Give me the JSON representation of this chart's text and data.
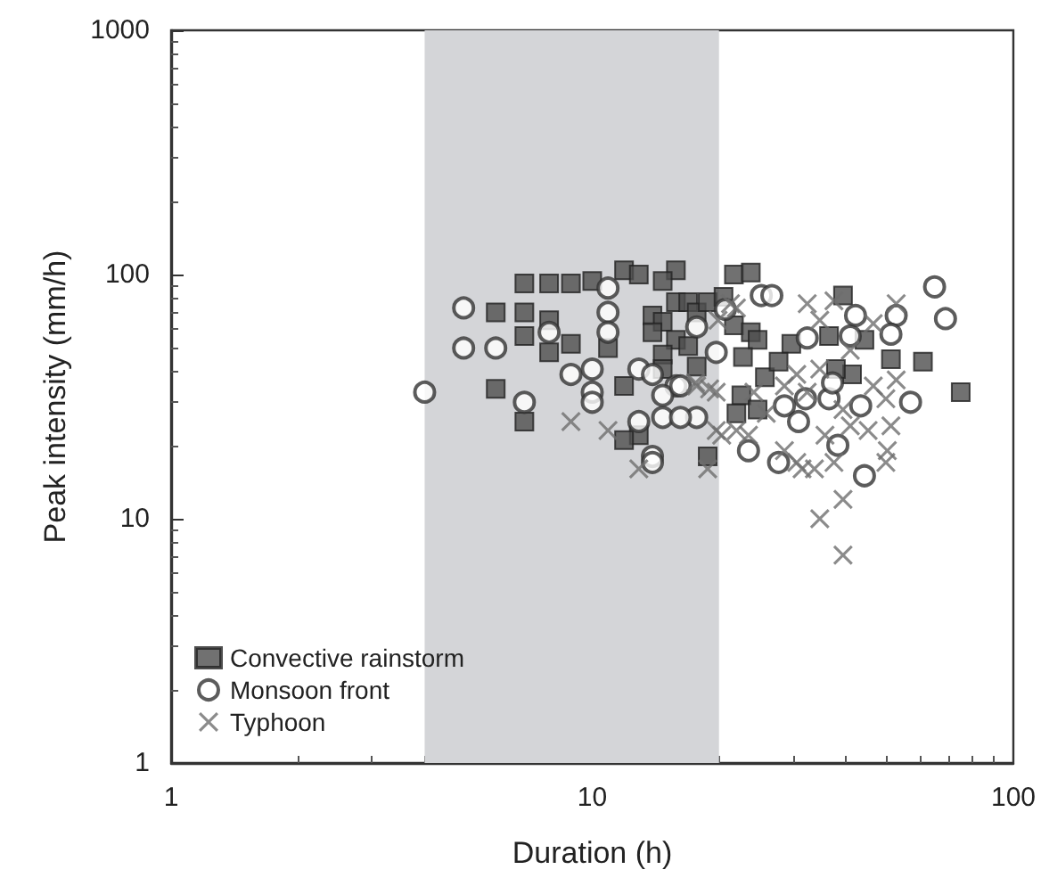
{
  "chart_data": {
    "type": "scatter",
    "xlabel": "Duration (h)",
    "ylabel": "Peak intensity (mm/h)",
    "log": "xy",
    "xlim": [
      1,
      100
    ],
    "ylim": [
      1,
      1000
    ],
    "xticks": [
      1,
      10,
      100
    ],
    "yticks": [
      1,
      10,
      100,
      1000
    ],
    "grid": false,
    "legend": "bottom left",
    "bands": [
      {
        "axis": "x",
        "from": 4,
        "to": 20,
        "color": "#d4d5d8"
      }
    ],
    "series": [
      {
        "name": "Convective rainstorm",
        "color": "#4d4d4d",
        "marker": "square",
        "x": [
          6.9,
          7.9,
          8.9,
          10,
          11.9,
          12.9,
          15.8,
          14.7,
          5.9,
          6.9,
          7.9,
          6.9,
          7.9,
          8.9,
          10.9,
          13.9,
          14.7,
          15.8,
          16.9,
          17.7,
          18.8,
          20.5,
          13.9,
          15.8,
          16.9,
          14.7,
          14.7,
          17.7,
          5.9,
          6.9,
          11.9,
          12.9,
          11.9,
          18.8,
          21.7,
          23.8,
          21.7,
          23.8,
          24.7,
          39.4,
          36.5,
          29.7,
          44.3,
          51.2,
          61,
          75,
          41.4,
          37.9,
          25.7,
          22.6,
          24.7,
          22,
          27.7,
          22.8
        ],
        "values": [
          92,
          92,
          92,
          94,
          104,
          100,
          104,
          94,
          70,
          70,
          65,
          56,
          48,
          52,
          50,
          68,
          64,
          77,
          77,
          70,
          77,
          81,
          58,
          54,
          51,
          47,
          41,
          42,
          34,
          25,
          35,
          22,
          21,
          18,
          100,
          102,
          62,
          58,
          54,
          82,
          56,
          52,
          54,
          45,
          44,
          33,
          39,
          41,
          38,
          32,
          28,
          27,
          44,
          46
        ]
      },
      {
        "name": "Monsoon front",
        "color": "#333333",
        "marker": "circle",
        "x": [
          4.0,
          4.95,
          4.95,
          5.9,
          7.9,
          10.9,
          10.9,
          10.9,
          8.9,
          10,
          10,
          10,
          6.9,
          12.9,
          13.9,
          15.8,
          14.7,
          14.7,
          17.7,
          12.9,
          13.9,
          13.9,
          17.7,
          19.7,
          20.7,
          65,
          69,
          57,
          44.3,
          27.7,
          23.5,
          38.3,
          43.4,
          36.5,
          30.9,
          25.2,
          26.7,
          42.2,
          52.7,
          51.2,
          41,
          37.2,
          16.2,
          32.1,
          28.6,
          32.4,
          16.2
        ],
        "values": [
          33,
          73,
          50,
          50,
          58,
          88,
          70,
          58,
          39,
          41,
          33,
          30,
          30,
          41,
          39,
          35,
          32,
          26,
          26,
          25,
          18,
          17,
          61,
          48,
          72,
          89,
          66,
          30,
          15,
          17,
          19,
          20,
          29,
          31,
          25,
          82,
          82,
          68,
          68,
          57,
          56,
          36,
          26,
          31,
          29,
          55,
          35
        ]
      },
      {
        "name": "Typhoon",
        "color": "#6e6e6e",
        "marker": "cross",
        "x": [
          8.9,
          10.9,
          12.9,
          18.8,
          17.7,
          19.7,
          19.7,
          22,
          32.4,
          37.5,
          52.7,
          34.7,
          46.5,
          41,
          52.7,
          46.5,
          49.8,
          39.4,
          51.2,
          45.2,
          41,
          50.2,
          49.8,
          37.5,
          33.7,
          30.6,
          31.5,
          28.6,
          23.5,
          22,
          20.3,
          19,
          17.6,
          39.4,
          34.7,
          39.4,
          30.6,
          32.4,
          28.6,
          34.7,
          24.2,
          25.9,
          35.7,
          19.9,
          21.3
        ],
        "values": [
          25,
          23,
          16,
          16,
          35,
          33,
          23,
          73,
          76,
          78,
          76,
          65,
          63,
          49,
          37,
          35,
          31,
          28,
          24,
          23,
          24,
          19,
          17,
          17,
          16,
          17,
          16,
          19,
          22,
          23,
          22,
          34,
          36,
          12,
          10,
          7.1,
          39,
          33,
          35,
          41,
          33,
          27,
          22,
          65,
          76
        ]
      }
    ]
  }
}
